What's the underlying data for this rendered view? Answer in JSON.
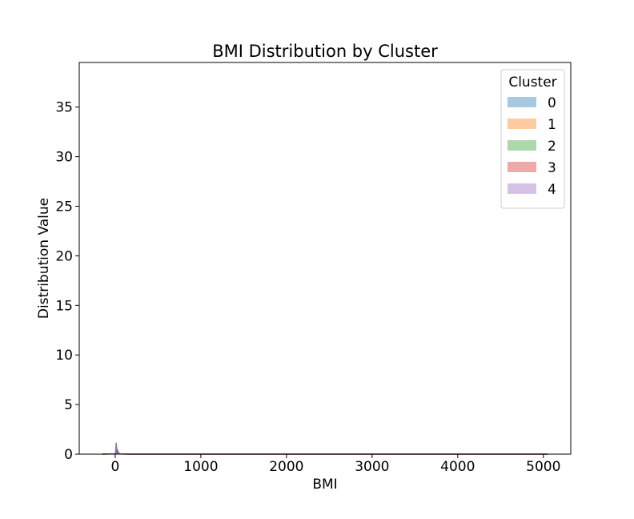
{
  "chart_data": {
    "type": "area",
    "title": "BMI Distribution by Cluster",
    "xlabel": "BMI",
    "ylabel": "Distribution Value",
    "xlim": [
      -420,
      5320
    ],
    "ylim": [
      0,
      39.5
    ],
    "xticks": [
      0,
      1000,
      2000,
      3000,
      4000,
      5000
    ],
    "yticks": [
      0,
      5,
      10,
      15,
      20,
      25,
      30,
      35
    ],
    "grid": false,
    "legend": {
      "title": "Cluster",
      "placement": "top-right"
    },
    "series": [
      {
        "name": "0",
        "color": "#1f77b4",
        "x": [
          -150,
          0,
          10,
          20,
          30,
          40,
          60,
          150,
          5050
        ],
        "y": [
          0,
          0.02,
          0.15,
          0.5,
          0.35,
          0.1,
          0.02,
          0,
          0
        ]
      },
      {
        "name": "1",
        "color": "#ff7f0e",
        "x": [
          -150,
          0,
          10,
          20,
          30,
          40,
          60,
          150,
          5050
        ],
        "y": [
          0,
          0.02,
          0.12,
          0.45,
          0.3,
          0.08,
          0.02,
          0,
          0
        ]
      },
      {
        "name": "2",
        "color": "#2ca02c",
        "x": [
          -150,
          0,
          10,
          20,
          30,
          40,
          60,
          150,
          5050
        ],
        "y": [
          0,
          0.02,
          0.1,
          0.4,
          0.28,
          0.07,
          0.02,
          0,
          0
        ]
      },
      {
        "name": "3",
        "color": "#d62728",
        "x": [
          -150,
          0,
          10,
          20,
          30,
          40,
          60,
          150,
          5050
        ],
        "y": [
          0,
          0.01,
          0.05,
          0.1,
          0.06,
          0.03,
          0.01,
          0,
          0
        ]
      },
      {
        "name": "4",
        "color": "#9467bd",
        "x": [
          -20,
          0,
          5,
          10,
          12,
          15,
          18,
          25,
          40,
          80,
          5050
        ],
        "y": [
          0,
          0.05,
          0.3,
          1.0,
          1.15,
          0.8,
          0.35,
          0.12,
          0.03,
          0,
          0
        ]
      }
    ]
  }
}
